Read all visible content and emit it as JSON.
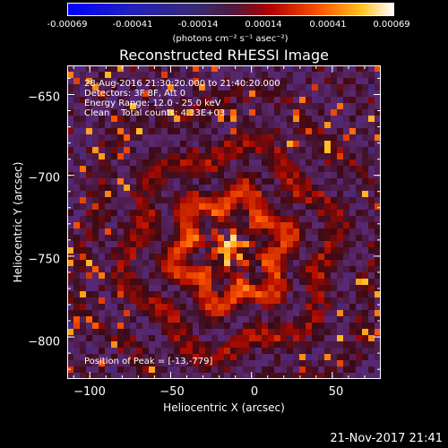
{
  "colorbar": {
    "ticks": [
      "-0.00069",
      "-0.00041",
      "-0.00014",
      "0.00014",
      "0.00041",
      "0.00069"
    ],
    "units": "(photons cm⁻² s⁻¹ asec⁻²)"
  },
  "chart_data": {
    "type": "heatmap",
    "title": "Reconstructed RHESSI Image",
    "xlabel": "Heliocentric X (arcsec)",
    "ylabel": "Heliocentric Y (arcsec)",
    "xlim": [
      -114,
      80
    ],
    "ylim": [
      -826,
      -632
    ],
    "xticks": [
      -100,
      -50,
      0,
      50
    ],
    "xtick_labels": [
      "−100",
      "−50",
      "0",
      "50"
    ],
    "yticks": [
      -650,
      -700,
      -750,
      -800
    ],
    "ytick_labels": [
      "−650",
      "−700",
      "−750",
      "−800"
    ],
    "value_range": [
      -0.00069,
      0.00069
    ],
    "peak": [
      -13,
      -779
    ],
    "annotations": {
      "time_range": "28-Aug-2016 21:30:20.000 to 21:40:20.000",
      "detectors": "Detectors: 3F 8F, Att 0",
      "energy": "Energy Range: 12.0 - 25.0 keV",
      "method": "Clean    Total counts: 4.33E+03",
      "peak_position": "Position of Peak = [-13,-779]"
    }
  },
  "footer": {
    "date": "21-Nov-2017 21:41"
  },
  "colors": {
    "background": "#000000",
    "foreground": "#ffffff"
  }
}
